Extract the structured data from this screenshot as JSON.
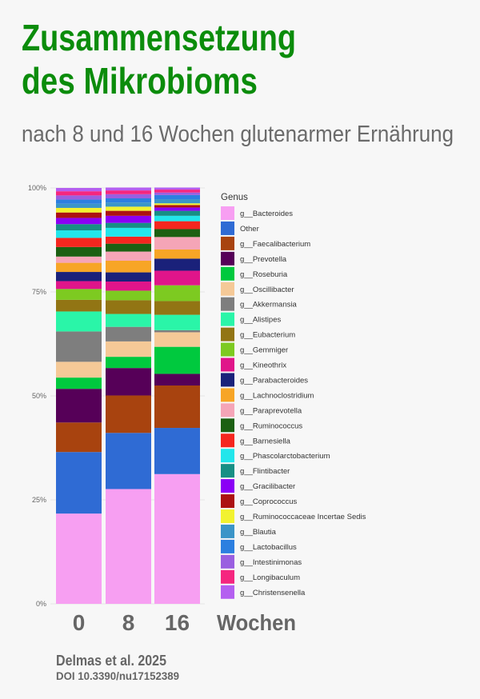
{
  "header": {
    "title_line1": "Zusammensetzung",
    "title_line2": "des Mikrobioms",
    "subtitle": "nach 8 und 16 Wochen glutenarmer Ernährung",
    "title_color": "#0b8c0b"
  },
  "chart_data": {
    "type": "bar",
    "stacked": true,
    "categories": [
      "0",
      "8",
      "16"
    ],
    "xlabel": "Wochen",
    "ylabel": "",
    "ylim": [
      0,
      100
    ],
    "yticks": [
      "0%",
      "25%",
      "50%",
      "75%",
      "100%"
    ],
    "grid": true,
    "legend_title": "Genus",
    "legend_position": "right",
    "series": [
      {
        "name": "g__Bacteroides",
        "color": "#f79ff2",
        "values": [
          21.7,
          27.6,
          31.2
        ]
      },
      {
        "name": "Other",
        "color": "#2f6bd4",
        "values": [
          14.8,
          13.5,
          11.1
        ]
      },
      {
        "name": "g__Faecalibacterium",
        "color": "#a8430f",
        "values": [
          7.1,
          9.0,
          10.2
        ]
      },
      {
        "name": "g__Prevotella",
        "color": "#560058",
        "values": [
          8.1,
          6.6,
          2.8
        ]
      },
      {
        "name": "g__Roseburia",
        "color": "#00c93e",
        "values": [
          2.7,
          2.7,
          6.5
        ]
      },
      {
        "name": "g__Oscillibacter",
        "color": "#f5c997",
        "values": [
          3.8,
          3.7,
          3.5
        ]
      },
      {
        "name": "g__Akkermansia",
        "color": "#7e7e7e",
        "values": [
          7.3,
          3.5,
          0.5
        ]
      },
      {
        "name": "g__Alistipes",
        "color": "#2af5a8",
        "values": [
          4.8,
          3.1,
          3.7
        ]
      },
      {
        "name": "g__Eubacterium",
        "color": "#927514",
        "values": [
          2.8,
          3.3,
          3.3
        ]
      },
      {
        "name": "g__Gemmiger",
        "color": "#7dca21",
        "values": [
          2.6,
          2.3,
          3.8
        ]
      },
      {
        "name": "g__Kineothrix",
        "color": "#e0158a",
        "values": [
          1.9,
          2.2,
          3.5
        ]
      },
      {
        "name": "g__Parabacteroides",
        "color": "#1a217a",
        "values": [
          2.2,
          2.2,
          2.9
        ]
      },
      {
        "name": "g__Lachnoclostridium",
        "color": "#f7a526",
        "values": [
          2.2,
          2.8,
          2.2
        ]
      },
      {
        "name": "g__Paraprevotella",
        "color": "#f5a5b7",
        "values": [
          1.5,
          2.2,
          3.0
        ]
      },
      {
        "name": "g__Ruminococcus",
        "color": "#1c6012",
        "values": [
          2.3,
          1.9,
          1.9
        ]
      },
      {
        "name": "g__Barnesiella",
        "color": "#f5261f",
        "values": [
          2.2,
          1.7,
          1.9
        ]
      },
      {
        "name": "g__Phascolarctobacterium",
        "color": "#22e6eb",
        "values": [
          1.8,
          2.1,
          1.3
        ]
      },
      {
        "name": "g__Flintibacter",
        "color": "#178f85",
        "values": [
          1.5,
          1.2,
          1.2
        ]
      },
      {
        "name": "g__Gracilibacter",
        "color": "#8b00f5",
        "values": [
          1.5,
          1.7,
          0.8
        ]
      },
      {
        "name": "g__Coprococcus",
        "color": "#ac1212",
        "values": [
          1.3,
          1.2,
          0.6
        ]
      },
      {
        "name": "g__Ruminococcaceae Incertae Sedis",
        "color": "#f2f230",
        "values": [
          1.1,
          1.0,
          0.4
        ]
      },
      {
        "name": "g__Blautia",
        "color": "#3b95c8",
        "values": [
          1.0,
          1.0,
          1.0
        ]
      },
      {
        "name": "g__Lactobacillus",
        "color": "#2c7fe0",
        "values": [
          1.0,
          1.0,
          1.0
        ]
      },
      {
        "name": "g__Intestinimonas",
        "color": "#9a5fe0",
        "values": [
          1.0,
          1.0,
          0.6
        ]
      },
      {
        "name": "g__Longibaculum",
        "color": "#f5267f",
        "values": [
          1.0,
          0.9,
          0.7
        ]
      },
      {
        "name": "g__Christensenella",
        "color": "#b45ff0",
        "values": [
          0.8,
          0.7,
          0.5
        ]
      }
    ]
  },
  "footer": {
    "citation": "Delmas et al. 2025",
    "doi": "DOI 10.3390/nu17152389"
  }
}
